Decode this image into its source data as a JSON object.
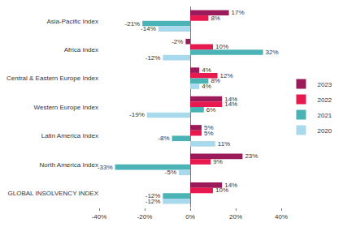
{
  "chart_data": {
    "type": "bar",
    "orientation": "horizontal",
    "categories": [
      "Asia-Pacific Index",
      "Africa Index",
      "Central & Eastern Europe Index",
      "Western Europe Index",
      "Latin America Index",
      "North America Index",
      "GLOBAL INSOLVENCY INDEX"
    ],
    "series": [
      {
        "name": "2023",
        "color": "#9b1b5a",
        "values": [
          17,
          -2,
          4,
          14,
          5,
          23,
          14
        ],
        "value_labels": [
          "17%",
          "-2%",
          "4%",
          "14%",
          "5%",
          "23%",
          "14%"
        ]
      },
      {
        "name": "2022",
        "color": "#e8194f",
        "values": [
          8,
          10,
          12,
          14,
          5,
          9,
          10
        ],
        "value_labels": [
          "8%",
          "10%",
          "12%",
          "14%",
          "5%",
          "9%",
          "10%"
        ]
      },
      {
        "name": "2021",
        "color": "#4bb3b5",
        "values": [
          -21,
          32,
          8,
          6,
          -8,
          -33,
          -12
        ],
        "value_labels": [
          "-21%",
          "32%",
          "8%",
          "6%",
          "-8%",
          "-33%",
          "-12%"
        ]
      },
      {
        "name": "2020",
        "color": "#a9d9ec",
        "values": [
          -14,
          -12,
          4,
          -19,
          11,
          -5,
          -12
        ],
        "value_labels": [
          "-14%",
          "-12%",
          "4%",
          "-19%",
          "11%",
          "-5%",
          "-12%"
        ]
      }
    ],
    "xlim": [
      -40,
      40
    ],
    "xticks": [
      {
        "value": -40,
        "label": "-40%"
      },
      {
        "value": -20,
        "label": "-20%"
      },
      {
        "value": 0,
        "label": "0%"
      },
      {
        "value": 20,
        "label": "20%"
      },
      {
        "value": 40,
        "label": "40%"
      }
    ],
    "grid": false,
    "legend": "right",
    "data_labels": true
  }
}
